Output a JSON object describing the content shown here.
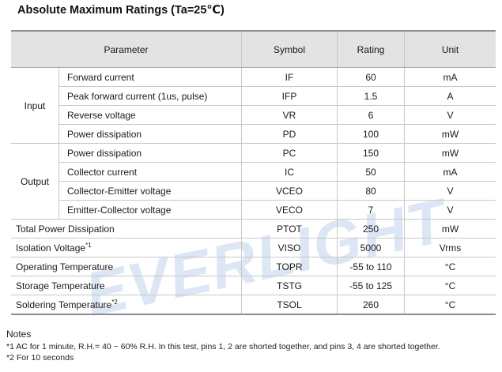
{
  "title": "Absolute Maximum Ratings (Ta=25℃)",
  "watermark": "EVERLIGHT",
  "headers": {
    "parameter": "Parameter",
    "symbol": "Symbol",
    "rating": "Rating",
    "unit": "Unit"
  },
  "groups": {
    "input": "Input",
    "output": "Output"
  },
  "rows": [
    {
      "param": "Forward current",
      "symbol": "IF",
      "rating": "60",
      "unit": "mA"
    },
    {
      "param": "Peak forward current (1us, pulse)",
      "symbol": "IFP",
      "rating": "1.5",
      "unit": "A"
    },
    {
      "param": "Reverse voltage",
      "symbol": "VR",
      "rating": "6",
      "unit": "V"
    },
    {
      "param": "Power dissipation",
      "symbol": "PD",
      "rating": "100",
      "unit": "mW"
    },
    {
      "param": "Power dissipation",
      "symbol": "PC",
      "rating": "150",
      "unit": "mW"
    },
    {
      "param": "Collector current",
      "symbol": "IC",
      "rating": "50",
      "unit": "mA"
    },
    {
      "param": "Collector-Emitter voltage",
      "symbol": "VCEO",
      "rating": "80",
      "unit": "V"
    },
    {
      "param": "Emitter-Collector voltage",
      "symbol": "VECO",
      "rating": "7",
      "unit": "V"
    },
    {
      "param": "Total Power Dissipation",
      "symbol": "PTOT",
      "rating": "250",
      "unit": "mW"
    },
    {
      "param": "Isolation Voltage",
      "note": "*1",
      "symbol": "VISO",
      "rating": "5000",
      "unit": "Vrms"
    },
    {
      "param": "Operating Temperature",
      "symbol": "TOPR",
      "rating": "-55 to 110",
      "unit": "°C"
    },
    {
      "param": "Storage Temperature",
      "symbol": "TSTG",
      "rating": "-55 to 125",
      "unit": "°C"
    },
    {
      "param": "Soldering Temperature",
      "note": "*2",
      "symbol": "TSOL",
      "rating": "260",
      "unit": "°C"
    }
  ],
  "notes": {
    "title": "Notes",
    "n1": "*1 AC for 1 minute, R.H.= 40 ~ 60% R.H. In this test, pins 1, 2 are shorted together, and pins 3, 4 are shorted together.",
    "n2": "*2 For 10 seconds"
  }
}
